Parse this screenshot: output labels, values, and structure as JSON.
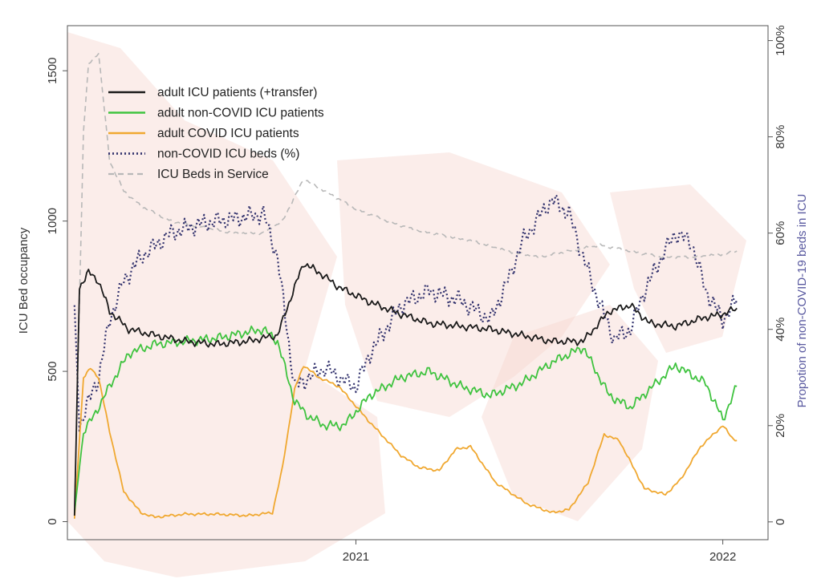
{
  "chart_data": {
    "type": "line",
    "title": "",
    "xlabel": "",
    "ylabel": "ICU Bed occupancy",
    "y2label": "Propotion of non-COVID-19 beds in ICU",
    "xlim": [
      "2020-03-20",
      "2022-02-15"
    ],
    "ylim": [
      -60,
      1650
    ],
    "y2lim": [
      -3.7,
      103.1
    ],
    "x_ticks": [
      {
        "date": "2021-01-01",
        "label": "2021"
      },
      {
        "date": "2022-01-01",
        "label": "2022"
      }
    ],
    "y_ticks": [
      0,
      500,
      1000,
      1500
    ],
    "y2_ticks": [
      0,
      20,
      40,
      60,
      80,
      100
    ],
    "y2_tick_labels": [
      "0",
      "20%",
      "40%",
      "60%",
      "80%",
      "100%"
    ],
    "grid": false,
    "legend_position": "top-left",
    "colors": {
      "adult_icu": "#1a1a1a",
      "non_covid": "#3fc33f",
      "covid": "#f0a830",
      "non_covid_pct": "#33336e",
      "beds": "#b8b8b8",
      "y2_axis_text": "#5a5aa0",
      "background_map": "#f6d8d0"
    },
    "series": [
      {
        "key": "adult_icu",
        "name": "adult ICU patients (+transfer)",
        "style": "solid",
        "axis": "left",
        "x": [
          "2020-03-27",
          "2020-04-01",
          "2020-04-10",
          "2020-04-20",
          "2020-05-01",
          "2020-05-20",
          "2020-06-15",
          "2020-07-15",
          "2020-08-15",
          "2020-09-15",
          "2020-10-15",
          "2020-11-01",
          "2020-11-10",
          "2020-11-25",
          "2020-12-15",
          "2021-01-15",
          "2021-02-15",
          "2021-03-15",
          "2021-04-15",
          "2021-05-15",
          "2021-06-15",
          "2021-07-15",
          "2021-08-15",
          "2021-09-10",
          "2021-10-01",
          "2021-10-20",
          "2021-11-15",
          "2021-12-15",
          "2022-01-01",
          "2022-01-15"
        ],
        "y": [
          20,
          780,
          830,
          800,
          700,
          640,
          620,
          600,
          590,
          600,
          620,
          780,
          860,
          830,
          780,
          730,
          690,
          660,
          650,
          640,
          620,
          600,
          600,
          700,
          720,
          660,
          650,
          680,
          690,
          710
        ]
      },
      {
        "key": "non_covid",
        "name": "adult non-COVID ICU patients",
        "style": "solid",
        "axis": "left",
        "x": [
          "2020-03-27",
          "2020-04-05",
          "2020-04-15",
          "2020-05-01",
          "2020-05-20",
          "2020-06-15",
          "2020-07-15",
          "2020-08-15",
          "2020-09-15",
          "2020-10-01",
          "2020-10-15",
          "2020-11-01",
          "2020-11-15",
          "2020-12-01",
          "2020-12-20",
          "2021-01-15",
          "2021-02-15",
          "2021-03-15",
          "2021-04-15",
          "2021-05-15",
          "2021-06-15",
          "2021-07-15",
          "2021-08-15",
          "2021-09-10",
          "2021-10-01",
          "2021-10-20",
          "2021-11-15",
          "2021-12-15",
          "2022-01-01",
          "2022-01-15"
        ],
        "y": [
          30,
          300,
          350,
          450,
          560,
          590,
          600,
          610,
          630,
          640,
          600,
          400,
          350,
          320,
          320,
          420,
          480,
          500,
          450,
          420,
          460,
          530,
          580,
          420,
          380,
          440,
          520,
          460,
          340,
          450
        ]
      },
      {
        "key": "covid",
        "name": "adult COVID ICU patients",
        "style": "solid",
        "axis": "left",
        "x": [
          "2020-03-27",
          "2020-04-05",
          "2020-04-12",
          "2020-04-20",
          "2020-05-01",
          "2020-05-15",
          "2020-06-01",
          "2020-06-15",
          "2020-07-15",
          "2020-08-15",
          "2020-09-15",
          "2020-10-10",
          "2020-10-20",
          "2020-11-01",
          "2020-11-10",
          "2020-11-25",
          "2020-12-15",
          "2021-01-15",
          "2021-02-15",
          "2021-03-05",
          "2021-03-25",
          "2021-04-10",
          "2021-04-25",
          "2021-05-20",
          "2021-06-20",
          "2021-07-15",
          "2021-08-01",
          "2021-08-20",
          "2021-09-05",
          "2021-09-20",
          "2021-10-15",
          "2021-11-05",
          "2021-11-20",
          "2021-12-10",
          "2022-01-01",
          "2022-01-10",
          "2022-01-15"
        ],
        "y": [
          10,
          480,
          510,
          480,
          300,
          100,
          30,
          15,
          25,
          25,
          20,
          30,
          180,
          440,
          520,
          480,
          450,
          330,
          220,
          180,
          170,
          240,
          250,
          130,
          60,
          30,
          40,
          130,
          290,
          270,
          110,
          90,
          140,
          250,
          320,
          280,
          270
        ]
      },
      {
        "key": "non_covid_pct",
        "name": "non-COVID ICU beds (%)",
        "style": "dotted",
        "axis": "right",
        "x": [
          "2020-03-27",
          "2020-04-01",
          "2020-04-10",
          "2020-04-20",
          "2020-05-01",
          "2020-05-15",
          "2020-06-01",
          "2020-07-01",
          "2020-08-01",
          "2020-09-01",
          "2020-10-01",
          "2020-10-15",
          "2020-11-01",
          "2020-11-15",
          "2020-12-01",
          "2020-12-15",
          "2021-01-01",
          "2021-01-15",
          "2021-02-15",
          "2021-03-15",
          "2021-04-15",
          "2021-05-15",
          "2021-06-01",
          "2021-06-15",
          "2021-07-01",
          "2021-07-15",
          "2021-08-01",
          "2021-08-15",
          "2021-09-01",
          "2021-09-15",
          "2021-10-01",
          "2021-10-15",
          "2021-11-01",
          "2021-11-15",
          "2021-12-01",
          "2021-12-15",
          "2022-01-01",
          "2022-01-15"
        ],
        "y": [
          45,
          20,
          25,
          30,
          42,
          50,
          55,
          60,
          62,
          63,
          64,
          55,
          28,
          30,
          32,
          30,
          28,
          35,
          45,
          48,
          46,
          42,
          50,
          58,
          63,
          67,
          64,
          55,
          45,
          38,
          40,
          48,
          55,
          60,
          58,
          48,
          42,
          46
        ]
      },
      {
        "key": "beds",
        "name": "ICU Beds in Service",
        "style": "dashed",
        "axis": "left",
        "x": [
          "2020-03-27",
          "2020-04-05",
          "2020-04-10",
          "2020-04-20",
          "2020-05-01",
          "2020-05-15",
          "2020-06-01",
          "2020-07-01",
          "2020-08-01",
          "2020-09-01",
          "2020-10-01",
          "2020-10-20",
          "2020-11-10",
          "2020-12-01",
          "2021-01-01",
          "2021-02-01",
          "2021-03-01",
          "2021-04-01",
          "2021-05-01",
          "2021-06-01",
          "2021-07-01",
          "2021-08-01",
          "2021-09-01",
          "2021-10-01",
          "2021-11-01",
          "2021-12-01",
          "2022-01-01",
          "2022-01-15"
        ],
        "y": [
          20,
          1300,
          1520,
          1560,
          1200,
          1100,
          1050,
          1000,
          980,
          960,
          960,
          1000,
          1140,
          1100,
          1040,
          1000,
          970,
          950,
          930,
          900,
          880,
          900,
          920,
          900,
          880,
          880,
          890,
          900
        ]
      }
    ]
  }
}
